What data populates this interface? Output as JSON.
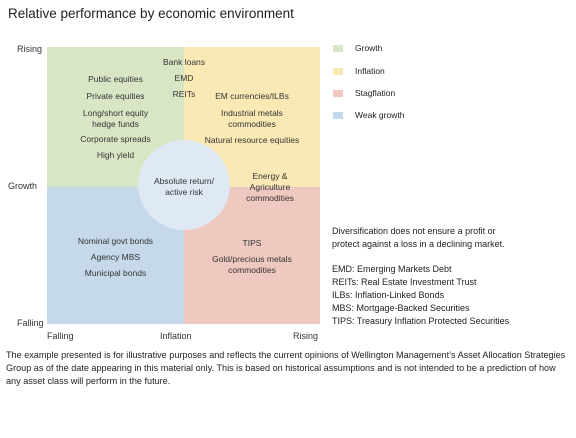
{
  "title": "Relative performance by economic environment",
  "y_axis": {
    "top": "Rising",
    "middle": "Growth",
    "bottom": "Falling"
  },
  "x_axis": {
    "left": "Falling",
    "middle": "Inflation",
    "right": "Rising"
  },
  "quadrants": {
    "growth": [
      "Public equities",
      "Private equities",
      "Long/short equity\nhedge funds",
      "Corporate spreads",
      "High yield"
    ],
    "growth_inflation_border": [
      "Bank loans",
      "EMD",
      "REITs"
    ],
    "inflation": [
      "EM currencies/ILBs",
      "Industrial metals\ncommodities",
      "Natural resource equities",
      "Energy &\nAgriculture\ncommodities"
    ],
    "weak_growth": [
      "Nominal govt bonds",
      "Agency MBS",
      "Municipal bonds"
    ],
    "stagflation": [
      "TIPS",
      "Gold/precious metals\ncommodities"
    ],
    "center": "Absolute return/\nactive risk"
  },
  "legend": [
    {
      "label": "Growth",
      "color": "#d9e6c5"
    },
    {
      "label": "Inflation",
      "color": "#fbe9b5"
    },
    {
      "label": "Stagflation",
      "color": "#efc9c0"
    },
    {
      "label": "Weak growth",
      "color": "#c5d9ea"
    }
  ],
  "disclaimer": "Diversification does not ensure a profit or\nprotect against a loss in a declining market.",
  "abbreviations": [
    "EMD: Emerging Markets Debt",
    "REITs: Real Estate Investment Trust",
    "ILBs: Inflation-Linked Bonds",
    "MBS: Mortgage-Backed Securities",
    "TIPS: Treasury Inflation Protected Securities"
  ],
  "footer": "The example presented is for illustrative purposes and reflects the current opinions of Wellington Management’s Asset Allocation Strategies Group as of the date appearing in this material only. This is based on historical assumptions and is not intended to be a prediction of how any asset class will perform in the future."
}
